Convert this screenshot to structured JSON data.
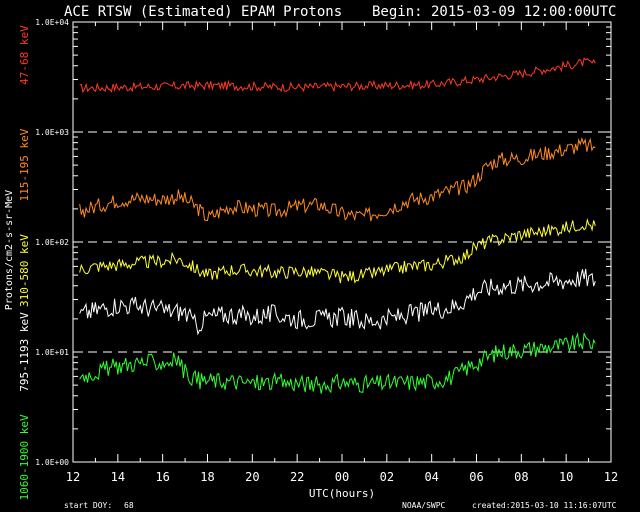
{
  "chart_data": {
    "type": "line",
    "title": "ACE RTSW (Estimated) EPAM Protons",
    "begin_label": "Begin: 2015-03-09 12:00:00UTC",
    "xlabel": "UTC(hours)",
    "ylabel_units": "Protons/cm2-s-sr-MeV",
    "y_scale": "log",
    "ylim": [
      1,
      10000
    ],
    "xlim": [
      0,
      24
    ],
    "x_tick_labels": [
      "12",
      "14",
      "16",
      "18",
      "20",
      "22",
      "00",
      "02",
      "04",
      "06",
      "08",
      "10",
      "12"
    ],
    "y_tick_labels": [
      "1.0E+00",
      "1.0E+01",
      "1.0E+02",
      "1.0E+03",
      "1.0E+04"
    ],
    "dashed_gridlines_at": [
      10,
      100,
      1000
    ],
    "series": [
      {
        "name": "47-68 keV",
        "color": "#ff3b1f",
        "points": [
          [
            0.3,
            2500
          ],
          [
            2,
            2550
          ],
          [
            4,
            2600
          ],
          [
            6,
            2650
          ],
          [
            8,
            2600
          ],
          [
            10,
            2550
          ],
          [
            12,
            2600
          ],
          [
            14,
            2650
          ],
          [
            16,
            2700
          ],
          [
            18,
            3000
          ],
          [
            19,
            3200
          ],
          [
            20,
            3400
          ],
          [
            21,
            3700
          ],
          [
            22,
            4000
          ],
          [
            22.8,
            4300
          ],
          [
            23.3,
            4200
          ]
        ]
      },
      {
        "name": "115-195 keV",
        "color": "#ff8a1f",
        "points": [
          [
            0.3,
            190
          ],
          [
            1,
            210
          ],
          [
            2,
            240
          ],
          [
            3,
            250
          ],
          [
            4,
            245
          ],
          [
            4.7,
            260
          ],
          [
            5.2,
            230
          ],
          [
            5.6,
            200
          ],
          [
            6,
            165
          ],
          [
            7,
            210
          ],
          [
            8,
            200
          ],
          [
            9,
            190
          ],
          [
            10,
            210
          ],
          [
            11,
            220
          ],
          [
            12,
            180
          ],
          [
            13,
            170
          ],
          [
            14,
            200
          ],
          [
            15,
            240
          ],
          [
            16,
            260
          ],
          [
            17,
            300
          ],
          [
            17.5,
            320
          ],
          [
            18,
            380
          ],
          [
            18.5,
            500
          ],
          [
            19,
            560
          ],
          [
            20,
            580
          ],
          [
            21,
            640
          ],
          [
            22,
            700
          ],
          [
            22.7,
            760
          ],
          [
            23.3,
            720
          ]
        ]
      },
      {
        "name": "310-580 keV",
        "color": "#ffff30",
        "points": [
          [
            0.3,
            56
          ],
          [
            1,
            60
          ],
          [
            2,
            62
          ],
          [
            3,
            65
          ],
          [
            4,
            67
          ],
          [
            4.7,
            70
          ],
          [
            5.2,
            62
          ],
          [
            5.6,
            55
          ],
          [
            6,
            50
          ],
          [
            7,
            56
          ],
          [
            8,
            55
          ],
          [
            9,
            53
          ],
          [
            10,
            54
          ],
          [
            11,
            52
          ],
          [
            12,
            48
          ],
          [
            13,
            50
          ],
          [
            14,
            55
          ],
          [
            15,
            60
          ],
          [
            16,
            62
          ],
          [
            17,
            70
          ],
          [
            17.5,
            75
          ],
          [
            18,
            92
          ],
          [
            18.5,
            100
          ],
          [
            19,
            105
          ],
          [
            20,
            118
          ],
          [
            21,
            125
          ],
          [
            22,
            135
          ],
          [
            22.8,
            148
          ],
          [
            23.3,
            140
          ]
        ]
      },
      {
        "name": "795-1193 keV",
        "color": "#ffffff",
        "points": [
          [
            0.3,
            22
          ],
          [
            1,
            24
          ],
          [
            2,
            27
          ],
          [
            3,
            26
          ],
          [
            4,
            24
          ],
          [
            5,
            23
          ],
          [
            5.5,
            17
          ],
          [
            6,
            21
          ],
          [
            7,
            22
          ],
          [
            8,
            21
          ],
          [
            9,
            22
          ],
          [
            10,
            20
          ],
          [
            11,
            20
          ],
          [
            12,
            21
          ],
          [
            13,
            19
          ],
          [
            14,
            20
          ],
          [
            15,
            22
          ],
          [
            16,
            24
          ],
          [
            17,
            26
          ],
          [
            17.5,
            30
          ],
          [
            18,
            36
          ],
          [
            18.5,
            38
          ],
          [
            19,
            40
          ],
          [
            20,
            41
          ],
          [
            21,
            43
          ],
          [
            22,
            45
          ],
          [
            22.8,
            48
          ],
          [
            23.3,
            44
          ]
        ]
      },
      {
        "name": "1060-1900 keV",
        "color": "#30ff30",
        "points": [
          [
            0.3,
            6
          ],
          [
            1,
            6.5
          ],
          [
            2,
            7.5
          ],
          [
            3,
            8
          ],
          [
            4,
            8
          ],
          [
            4.7,
            8.5
          ],
          [
            5,
            6.5
          ],
          [
            5.6,
            5.5
          ],
          [
            6,
            5.5
          ],
          [
            7,
            5.4
          ],
          [
            8,
            5.2
          ],
          [
            9,
            5.3
          ],
          [
            10,
            5.2
          ],
          [
            11,
            5
          ],
          [
            12,
            5.3
          ],
          [
            13,
            5.1
          ],
          [
            14,
            5.2
          ],
          [
            15,
            5.3
          ],
          [
            16,
            5.4
          ],
          [
            17,
            6
          ],
          [
            17.5,
            7
          ],
          [
            18,
            8
          ],
          [
            18.5,
            9
          ],
          [
            19,
            10
          ],
          [
            20,
            10.5
          ],
          [
            21,
            11
          ],
          [
            22,
            11.5
          ],
          [
            22.8,
            12.5
          ],
          [
            23.3,
            12
          ]
        ]
      }
    ]
  },
  "footer": {
    "start_doy_label": "start DOY:",
    "start_doy_value": "68",
    "source": "NOAA/SWPC",
    "created": "created:2015-03-10 11:16:07UTC"
  }
}
